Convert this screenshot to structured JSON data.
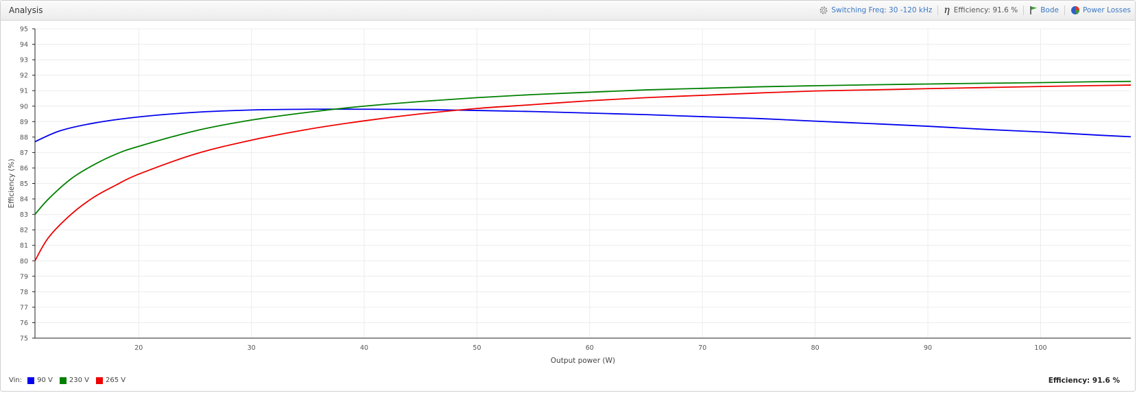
{
  "window": {
    "title": "Analysis"
  },
  "toolbar": {
    "switching_freq": "Switching Freq: 30 -120 kHz",
    "efficiency": "Efficiency: 91.6 %",
    "bode": "Bode",
    "power_losses": "Power Losses"
  },
  "legend": {
    "label": "Vin:",
    "items": [
      {
        "label": "90 V",
        "color": "#0000ee"
      },
      {
        "label": "230 V",
        "color": "#008000"
      },
      {
        "label": "265 V",
        "color": "#ee0000"
      }
    ]
  },
  "summary": {
    "efficiency": "Efficiency: 91.6 %"
  },
  "chart_data": {
    "type": "line",
    "xlabel": "Output power (W)",
    "ylabel": "Efficiency (%)",
    "xlim": [
      10.8,
      108
    ],
    "ylim": [
      75,
      95
    ],
    "x_ticks": [
      20,
      30,
      40,
      50,
      60,
      70,
      80,
      90,
      100
    ],
    "y_ticks": [
      75,
      76,
      77,
      78,
      79,
      80,
      81,
      82,
      83,
      84,
      85,
      86,
      87,
      88,
      89,
      90,
      91,
      92,
      93,
      94,
      95
    ],
    "grid": true,
    "legend_position": "bottom-left",
    "series": [
      {
        "name": "90 V",
        "color": "#0000ee",
        "x": [
          10.8,
          13,
          16,
          20,
          25,
          30,
          35,
          40,
          45,
          50,
          55,
          60,
          65,
          70,
          75,
          80,
          85,
          90,
          95,
          100,
          105,
          108
        ],
        "y": [
          87.7,
          88.4,
          88.9,
          89.3,
          89.6,
          89.75,
          89.8,
          89.8,
          89.78,
          89.72,
          89.65,
          89.55,
          89.45,
          89.32,
          89.2,
          89.03,
          88.87,
          88.7,
          88.5,
          88.33,
          88.13,
          88.02
        ]
      },
      {
        "name": "230 V",
        "color": "#008000",
        "x": [
          10.8,
          12,
          14,
          16,
          18,
          20,
          25,
          30,
          35,
          40,
          45,
          50,
          55,
          60,
          65,
          70,
          75,
          80,
          85,
          90,
          95,
          100,
          105,
          108
        ],
        "y": [
          83.0,
          84.0,
          85.3,
          86.2,
          86.9,
          87.4,
          88.4,
          89.1,
          89.6,
          90.0,
          90.3,
          90.55,
          90.75,
          90.9,
          91.05,
          91.15,
          91.25,
          91.32,
          91.38,
          91.43,
          91.48,
          91.52,
          91.58,
          91.6
        ]
      },
      {
        "name": "265 V",
        "color": "#ee0000",
        "x": [
          10.8,
          12,
          14,
          16,
          18,
          20,
          25,
          30,
          35,
          40,
          45,
          50,
          55,
          60,
          65,
          70,
          75,
          80,
          85,
          90,
          95,
          100,
          105,
          108
        ],
        "y": [
          80.0,
          81.5,
          83.0,
          84.1,
          84.9,
          85.6,
          86.9,
          87.8,
          88.5,
          89.05,
          89.5,
          89.85,
          90.1,
          90.35,
          90.55,
          90.7,
          90.85,
          90.98,
          91.05,
          91.13,
          91.2,
          91.27,
          91.33,
          91.36
        ]
      }
    ]
  }
}
